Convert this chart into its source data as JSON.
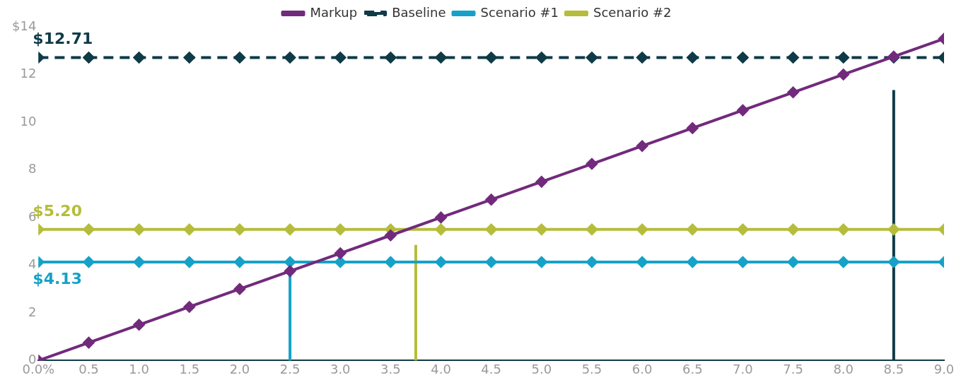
{
  "chart_data": {
    "type": "line",
    "x": [
      0,
      0.5,
      1,
      1.5,
      2,
      2.5,
      3,
      3.5,
      4,
      4.5,
      5,
      5.5,
      6,
      6.5,
      7,
      7.5,
      8,
      8.5,
      9
    ],
    "series": [
      {
        "name": "Markup",
        "color": "#722a7c",
        "values": [
          0,
          0.75,
          1.5,
          2.25,
          3,
          3.75,
          4.5,
          5.25,
          6,
          6.75,
          7.5,
          8.25,
          9,
          9.75,
          10.5,
          11.25,
          12,
          12.75,
          13.5
        ]
      },
      {
        "name": "Baseline",
        "color": "#0f3a47",
        "line_style": "dashed",
        "values": [
          12.71,
          12.71,
          12.71,
          12.71,
          12.71,
          12.71,
          12.71,
          12.71,
          12.71,
          12.71,
          12.71,
          12.71,
          12.71,
          12.71,
          12.71,
          12.71,
          12.71,
          12.71,
          12.71
        ]
      },
      {
        "name": "Scenario #1",
        "color": "#16a2c8",
        "values": [
          4.13,
          4.13,
          4.13,
          4.13,
          4.13,
          4.13,
          4.13,
          4.13,
          4.13,
          4.13,
          4.13,
          4.13,
          4.13,
          4.13,
          4.13,
          4.13,
          4.13,
          4.13,
          4.13
        ]
      },
      {
        "name": "Scenario #2",
        "color": "#b5bd3a",
        "values": [
          5.5,
          5.5,
          5.5,
          5.5,
          5.5,
          5.5,
          5.5,
          5.5,
          5.5,
          5.5,
          5.5,
          5.5,
          5.5,
          5.5,
          5.5,
          5.5,
          5.5,
          5.5,
          5.5
        ]
      },
      {
        "color": "#16a2c8",
        "marker": "none",
        "x": [
          2.5,
          2.5
        ],
        "values": [
          0,
          3.75
        ]
      },
      {
        "color": "#b5bd3a",
        "marker": "none",
        "x": [
          3.75,
          3.75
        ],
        "values": [
          0,
          4.85
        ]
      },
      {
        "color": "#0f3a47",
        "marker": "none",
        "x": [
          8.5,
          8.5
        ],
        "values": [
          0,
          11.35
        ]
      }
    ],
    "xlim": [
      0,
      9
    ],
    "xticks": [
      {
        "value": 0,
        "label": "0.0%"
      },
      {
        "value": 0.5,
        "label": "0.5"
      },
      {
        "value": 1,
        "label": "1.0"
      },
      {
        "value": 1.5,
        "label": "1.5"
      },
      {
        "value": 2,
        "label": "2.0"
      },
      {
        "value": 2.5,
        "label": "2.5"
      },
      {
        "value": 3,
        "label": "3.0"
      },
      {
        "value": 3.5,
        "label": "3.5"
      },
      {
        "value": 4,
        "label": "4.0"
      },
      {
        "value": 4.5,
        "label": "4.5"
      },
      {
        "value": 5,
        "label": "5.0"
      },
      {
        "value": 5.5,
        "label": "5.5"
      },
      {
        "value": 6,
        "label": "6.0"
      },
      {
        "value": 6.5,
        "label": "6.5"
      },
      {
        "value": 7,
        "label": "7.0"
      },
      {
        "value": 7.5,
        "label": "7.5"
      },
      {
        "value": 8,
        "label": "8.0"
      },
      {
        "value": 8.5,
        "label": "8.5"
      },
      {
        "value": 9,
        "label": "9.0"
      }
    ],
    "ylim": [
      0,
      14
    ],
    "yticks": [
      0,
      2,
      4,
      6,
      8,
      10,
      12,
      {
        "value": 14,
        "label": "$14"
      }
    ],
    "annotations": [
      {
        "text": "$12.71",
        "y": 12.71
      },
      {
        "text": "$5.20",
        "y": 5.5
      },
      {
        "text": "$4.13",
        "y": 4.13
      }
    ],
    "marker": "diamond",
    "line_style": "solid",
    "grid": false,
    "legend": "top"
  }
}
